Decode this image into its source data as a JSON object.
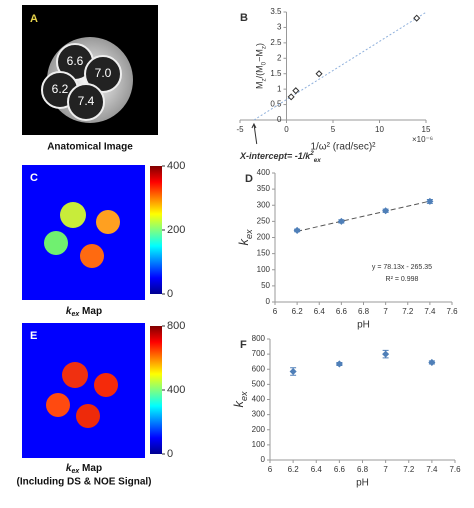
{
  "panel_a": {
    "label": "A",
    "caption": "Anatomical Image",
    "tubes": [
      "6.6",
      "7.0",
      "6.2",
      "7.4"
    ]
  },
  "panel_c": {
    "label": "C",
    "caption": [
      {
        "text": "k",
        "italic": true
      },
      {
        "text": "ex",
        "italic": true,
        "sub": true
      },
      {
        "text": " Map"
      }
    ],
    "clim": [
      0,
      400
    ],
    "ticks": [
      0,
      200,
      400
    ]
  },
  "panel_e": {
    "label": "E",
    "caption": [
      {
        "text": "k",
        "italic": true
      },
      {
        "text": "ex",
        "italic": true,
        "sub": true
      },
      {
        "text": " Map"
      }
    ],
    "caption2": "(Including DS & NOE Signal)",
    "clim": [
      0,
      800
    ],
    "ticks": [
      0,
      400,
      800
    ]
  },
  "chart_data": [
    {
      "type": "scatter",
      "label": "B",
      "x": [
        0.5,
        1,
        3.5,
        14
      ],
      "values": [
        0.75,
        0.95,
        1.5,
        3.3
      ],
      "color": "#333333",
      "trendline": {
        "x": [
          -3.5,
          15
        ],
        "y": [
          0,
          3.49
        ],
        "color": "#8fb0dc"
      },
      "xlim": [
        -5,
        15
      ],
      "xticks": [
        -5,
        0,
        5,
        10,
        15
      ],
      "ylim": [
        0,
        3.5
      ],
      "yticks": [
        0,
        0.5,
        1,
        1.5,
        2,
        2.5,
        3,
        3.5
      ],
      "xlabel": "1/ω² (rad/sec)²",
      "xscale_note": "×10⁻⁶",
      "ylabel": [
        {
          "text": "M"
        },
        {
          "text": "z",
          "sub": true
        },
        {
          "text": "/(M"
        },
        {
          "text": "0",
          "sub": true
        },
        {
          "text": "−M"
        },
        {
          "text": "z",
          "sub": true
        },
        {
          "text": ")"
        }
      ],
      "annotation": [
        {
          "text": "X-intercept= -1/k",
          "italic": true
        },
        {
          "text": "2",
          "sup": true,
          "italic": true
        },
        {
          "text": "ex",
          "sub": true,
          "italic": true
        }
      ]
    },
    {
      "type": "scatter",
      "label": "D",
      "x": [
        6.2,
        6.6,
        7.0,
        7.4
      ],
      "values": [
        222,
        250,
        283,
        312
      ],
      "errors": [
        4,
        5,
        5,
        6
      ],
      "color": "#4f7fb8",
      "trendline": {
        "x": [
          6.2,
          7.4
        ],
        "y": [
          219.06,
          312.81
        ],
        "color": "#555555",
        "dashed": true
      },
      "xlim": [
        6,
        7.6
      ],
      "xticks": [
        6,
        6.2,
        6.4,
        6.6,
        6.8,
        7,
        7.2,
        7.4,
        7.6
      ],
      "ylim": [
        0,
        400
      ],
      "yticks": [
        0,
        50,
        100,
        150,
        200,
        250,
        300,
        350,
        400
      ],
      "xlabel": "pH",
      "ylabel": [
        {
          "text": "k",
          "italic": true
        },
        {
          "text": "ex",
          "italic": true,
          "sub": true
        }
      ],
      "annotations": [
        "y = 78.13x - 265.35",
        "R² = 0.998"
      ]
    },
    {
      "type": "scatter",
      "label": "F",
      "x": [
        6.2,
        6.6,
        7.0,
        7.4
      ],
      "values": [
        585,
        635,
        700,
        645
      ],
      "errors": [
        25,
        10,
        25,
        10
      ],
      "color": "#4f7fb8",
      "xlim": [
        6,
        7.6
      ],
      "xticks": [
        6,
        6.2,
        6.4,
        6.6,
        6.8,
        7,
        7.2,
        7.4,
        7.6
      ],
      "ylim": [
        0,
        800
      ],
      "yticks": [
        0,
        100,
        200,
        300,
        400,
        500,
        600,
        700,
        800
      ],
      "xlabel": "pH",
      "ylabel": [
        {
          "text": "k",
          "italic": true
        },
        {
          "text": "ex",
          "italic": true,
          "sub": true
        }
      ]
    }
  ]
}
